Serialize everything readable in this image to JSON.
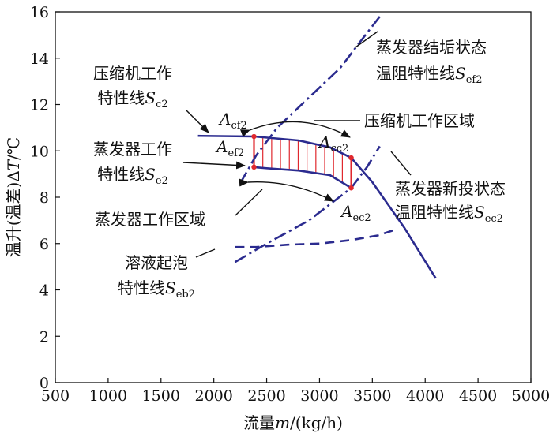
{
  "chart_data": {
    "type": "line",
    "xlabel": {
      "prefix": "流量",
      "var": "m",
      "suffix": "/(kg/h)"
    },
    "ylabel": {
      "prefix": "温升(温差)Δ",
      "var": "T",
      "suffix": "/℃"
    },
    "xlim": [
      500,
      5000
    ],
    "ylim": [
      0,
      16
    ],
    "x_ticks": [
      500,
      1000,
      1500,
      2000,
      2500,
      3000,
      3500,
      4000,
      4500,
      5000
    ],
    "y_ticks": [
      0,
      2,
      4,
      6,
      8,
      10,
      12,
      14,
      16
    ],
    "grid": false,
    "colors": {
      "series": "#2b2b8f",
      "hatch": "#e0282e",
      "point": "#e0282e",
      "arrow": "#111111"
    },
    "series": [
      {
        "key": "sc2",
        "style": "solid",
        "x": [
          1850,
          2380,
          2800,
          3100,
          3300,
          3500,
          3800,
          4100
        ],
        "y": [
          10.65,
          10.62,
          10.45,
          10.15,
          9.7,
          8.65,
          6.7,
          4.5
        ]
      },
      {
        "key": "se2",
        "style": "solid",
        "x": [
          2370,
          2500,
          2800,
          3100,
          3300
        ],
        "y": [
          9.3,
          9.25,
          9.15,
          8.95,
          8.4
        ]
      },
      {
        "key": "sef2",
        "style": "dashdot",
        "x": [
          2250,
          2400,
          2600,
          2900,
          3200,
          3400,
          3580
        ],
        "y": [
          8.6,
          9.8,
          11.0,
          12.3,
          13.6,
          14.8,
          15.85
        ]
      },
      {
        "key": "sec2",
        "style": "dashdot",
        "x": [
          2200,
          2500,
          2900,
          3300,
          3450,
          3570
        ],
        "y": [
          5.2,
          6.0,
          7.0,
          8.4,
          9.3,
          10.2
        ]
      },
      {
        "key": "seb2",
        "style": "dashed",
        "x": [
          2200,
          2400,
          2700,
          3000,
          3300,
          3550,
          3720
        ],
        "y": [
          5.85,
          5.85,
          5.95,
          6.0,
          6.15,
          6.35,
          6.6
        ]
      }
    ],
    "points": [
      {
        "key": "A_cf2",
        "x": 2380,
        "y": 10.62
      },
      {
        "key": "A_ef2",
        "x": 2380,
        "y": 9.3
      },
      {
        "key": "A_cc2",
        "x": 3300,
        "y": 9.7
      },
      {
        "key": "A_ec2",
        "x": 3300,
        "y": 8.4
      }
    ],
    "annotations": {
      "compressor_curve": {
        "line1": "压缩机工作",
        "line2_prefix": "特性线",
        "symbol": "S",
        "sub": "c2"
      },
      "evaporator_curve": {
        "line1": "蒸发器工作",
        "line2_prefix": "特性线",
        "symbol": "S",
        "sub": "e2"
      },
      "fouled_curve": {
        "line1": "蒸发器结垢状态",
        "line2_prefix": "温阻特性线",
        "symbol": "S",
        "sub": "ef2"
      },
      "new_curve": {
        "line1": "蒸发器新投状态",
        "line2_prefix": "温阻特性线",
        "symbol": "S",
        "sub": "ec2"
      },
      "foaming_curve": {
        "line1": "溶液起泡",
        "line2_prefix": "特性线",
        "symbol": "S",
        "sub": "eb2"
      },
      "compressor_region": "压缩机工作区域",
      "evaporator_region": "蒸发器工作区域",
      "point_labels": [
        {
          "symbol": "A",
          "sub": "cf2"
        },
        {
          "symbol": "A",
          "sub": "ef2"
        },
        {
          "symbol": "A",
          "sub": "cc2"
        },
        {
          "symbol": "A",
          "sub": "ec2"
        }
      ]
    }
  }
}
